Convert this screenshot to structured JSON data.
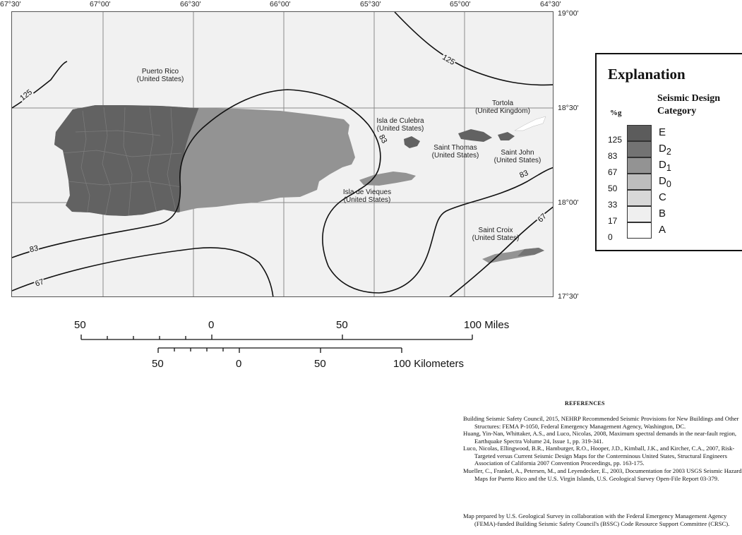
{
  "map": {
    "longitude_labels": [
      "67°30'",
      "67°00'",
      "66°30'",
      "66°00'",
      "65°30'",
      "65°00'",
      "64°30'"
    ],
    "latitude_labels": [
      "19°00'",
      "18°30'",
      "18°00'",
      "17°30'"
    ],
    "place_labels": {
      "puerto_rico": [
        "Puerto Rico",
        "(United States)"
      ],
      "tortola": [
        "Tortola",
        "(United Kingdom)"
      ],
      "culebra": [
        "Isla  de Culebra",
        "(United States)"
      ],
      "saint_thomas": [
        "Saint Thomas",
        "(United States)"
      ],
      "saint_john": [
        "Saint John",
        "(United States)"
      ],
      "vieques": [
        "Isla de Vieques",
        "(United States)"
      ],
      "saint_croix": [
        "Saint Croix",
        "(United States)"
      ]
    },
    "contour_labels": [
      "125",
      "125",
      "83",
      "83",
      "83",
      "67",
      "67"
    ],
    "colors": {
      "E": "#5c5c5c",
      "D2": "#737373",
      "D1": "#939393",
      "D0": "#bdbdbd",
      "C": "#d8d8d8",
      "B": "#efefef",
      "A": "#ffffff"
    }
  },
  "legend": {
    "title": "Explanation",
    "subtitle": "Seismic Design Category",
    "unit": "%g",
    "values": [
      "125",
      "83",
      "67",
      "50",
      "33",
      "17",
      "0"
    ],
    "categories": [
      {
        "letter": "E",
        "sub": ""
      },
      {
        "letter": "D",
        "sub": "2"
      },
      {
        "letter": "D",
        "sub": "1"
      },
      {
        "letter": "D",
        "sub": "0"
      },
      {
        "letter": "C",
        "sub": ""
      },
      {
        "letter": "B",
        "sub": ""
      },
      {
        "letter": "A",
        "sub": ""
      }
    ]
  },
  "scale": {
    "miles_labels": [
      "50",
      "0",
      "50",
      "100 Miles"
    ],
    "km_labels": [
      "50",
      "0",
      "50",
      "100 Kilometers"
    ]
  },
  "references": {
    "title": "REFERENCES",
    "items": [
      "Building Seismic Safety Council, 2015, NEHRP Recommended Seismic Provisions for New Buildings and Other Structures: FEMA P-1050, Federal Emergency Management Agency, Washington, DC.",
      "Huang, Yin-Nan, Whittaker, A.S., and Luco, Nicolas, 2008, Maximum spectral demands in the near-fault region, Earthquake Spectra Volume 24, Issue 1, pp. 319-341.",
      "Luco, Nicolas, Ellingwood, B.R., Hamburger, R.O., Hooper, J.D., Kimball, J.K., and Kircher, C.A., 2007, Risk-Targeted versus Current Seismic Design Maps for the Conterminous United States, Structural Engineers Association of California 2007 Convention Proceedings, pp. 163-175.",
      "Mueller, C., Frankel, A., Petersen, M., and Leyendecker, E., 2003, Documentation for 2003 USGS Seismic Hazard Maps for Puerto Rico and the U.S. Virgin Islands, U.S. Geological Survey Open-File Report 03-379."
    ],
    "prepared_by": "Map prepared by U.S. Geological Survey in collaboration with the Federal Emergency Management Agency (FEMA)-funded Building Seismic Safety Council's (BSSC) Code Resource Support Committee (CRSC)."
  }
}
